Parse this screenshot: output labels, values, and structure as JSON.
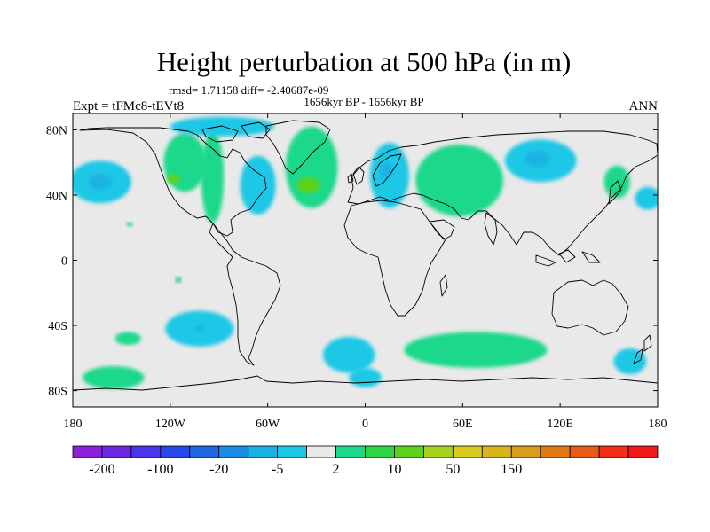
{
  "chart_data": {
    "type": "contour-map",
    "title": "Height perturbation at 500 hPa (in m)",
    "stats_line": "rmsd= 1.71158 diff= -2.40687e-09",
    "period": "1656kyr BP - 1656kyr BP",
    "left_label": "Expt = tFMc8-tEVt8",
    "right_label": "ANN",
    "x_ticks": [
      "180",
      "120W",
      "60W",
      "0",
      "60E",
      "120E",
      "180"
    ],
    "x_tick_values": [
      -180,
      -120,
      -60,
      0,
      60,
      120,
      180
    ],
    "y_ticks": [
      "80N",
      "40N",
      "0",
      "40S",
      "80S"
    ],
    "y_tick_values": [
      80,
      40,
      0,
      -40,
      -80
    ],
    "lon_range": [
      -180,
      180
    ],
    "lat_range": [
      -90,
      90
    ],
    "colorbar": {
      "levels": [
        "-200",
        "-100",
        "-20",
        "-5",
        "2",
        "10",
        "50",
        "150"
      ],
      "colors": [
        "#8a21d8",
        "#6a28e0",
        "#4a35e8",
        "#2848ea",
        "#1e66e0",
        "#1a8ce2",
        "#1ab2e2",
        "#1ac8e6",
        "#e9e9e9",
        "#1ed88a",
        "#2ed442",
        "#5cd21e",
        "#a8d01e",
        "#d8cc1e",
        "#d8b41e",
        "#d89c1e",
        "#e07a18",
        "#e85a18",
        "#f03016",
        "#f01818"
      ]
    },
    "anomaly_patches": [
      {
        "lon": -163,
        "lat": 48,
        "rlon": 19,
        "rlat": 13,
        "color": "#1ac8e6"
      },
      {
        "lon": -163,
        "lat": 48,
        "rlon": 7,
        "rlat": 5,
        "color": "#1ab2e2"
      },
      {
        "lon": -111,
        "lat": 60,
        "rlon": 13,
        "rlat": 18,
        "color": "#1ed88a"
      },
      {
        "lon": -94,
        "lat": 51,
        "rlon": 7,
        "rlat": 28,
        "color": "#1ed88a"
      },
      {
        "lon": -118,
        "lat": 50,
        "rlon": 4,
        "rlat": 3,
        "color": "#5cd21e"
      },
      {
        "lon": -66,
        "lat": 46,
        "rlon": 11,
        "rlat": 18,
        "color": "#1ac8e6"
      },
      {
        "lon": -88,
        "lat": 82,
        "rlon": 32,
        "rlat": 6,
        "color": "#1ac8e6"
      },
      {
        "lon": -33,
        "lat": 57,
        "rlon": 16,
        "rlat": 25,
        "color": "#1ed88a"
      },
      {
        "lon": -35,
        "lat": 46,
        "rlon": 7,
        "rlat": 5,
        "color": "#5cd21e"
      },
      {
        "lon": 15,
        "lat": 52,
        "rlon": 12,
        "rlat": 20,
        "color": "#1ac8e6"
      },
      {
        "lon": 13,
        "lat": 55,
        "rlon": 4,
        "rlat": 5,
        "color": "#1ab2e2"
      },
      {
        "lon": 58,
        "lat": 49,
        "rlon": 27,
        "rlat": 22,
        "color": "#1ed88a"
      },
      {
        "lon": 108,
        "lat": 61,
        "rlon": 22,
        "rlat": 13,
        "color": "#1ac8e6"
      },
      {
        "lon": 106,
        "lat": 62,
        "rlon": 8,
        "rlat": 5,
        "color": "#1ab2e2"
      },
      {
        "lon": 155,
        "lat": 48,
        "rlon": 8,
        "rlat": 10,
        "color": "#1ed88a"
      },
      {
        "lon": 174,
        "lat": 38,
        "rlon": 8,
        "rlat": 7,
        "color": "#1ac8e6"
      },
      {
        "lon": -102,
        "lat": -42,
        "rlon": 21,
        "rlat": 11,
        "color": "#1ac8e6"
      },
      {
        "lon": -102,
        "lat": -42,
        "rlon": 3,
        "rlat": 2,
        "color": "#1ab2e2"
      },
      {
        "lon": -146,
        "lat": -48,
        "rlon": 8,
        "rlat": 4,
        "color": "#1ed88a"
      },
      {
        "lon": -155,
        "lat": -72,
        "rlon": 19,
        "rlat": 7,
        "color": "#1ed88a"
      },
      {
        "lon": -10,
        "lat": -58,
        "rlon": 16,
        "rlat": 11,
        "color": "#1ac8e6"
      },
      {
        "lon": 0,
        "lat": -72,
        "rlon": 10,
        "rlat": 6,
        "color": "#1ac8e6"
      },
      {
        "lon": 68,
        "lat": -55,
        "rlon": 44,
        "rlat": 11,
        "color": "#1ed88a"
      },
      {
        "lon": 163,
        "lat": -62,
        "rlon": 10,
        "rlat": 8,
        "color": "#1ac8e6"
      },
      {
        "lon": -115,
        "lat": -12,
        "rlon": 2,
        "rlat": 2,
        "color": "#1ed88a"
      },
      {
        "lon": -145,
        "lat": 22,
        "rlon": 2,
        "rlat": 1.5,
        "color": "#1ed88a"
      }
    ]
  }
}
